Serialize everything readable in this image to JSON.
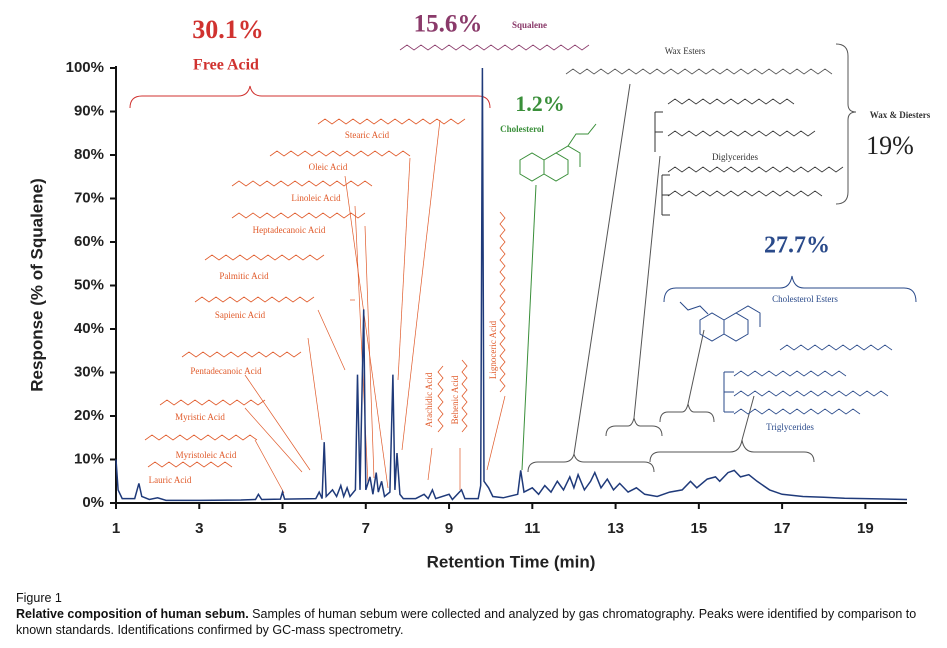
{
  "chart_data": {
    "type": "line",
    "y_label": "Response (% of Squalene)",
    "x_label": "Retention Time (min)",
    "xlim": [
      1,
      20
    ],
    "xticks": [
      1,
      3,
      5,
      7,
      9,
      11,
      13,
      15,
      17,
      19
    ],
    "ylim": [
      0,
      100
    ],
    "yticks": [
      {
        "value": 0,
        "label": "0%"
      },
      {
        "value": 10,
        "label": "10%"
      },
      {
        "value": 20,
        "label": "20%"
      },
      {
        "value": 30,
        "label": "30%"
      },
      {
        "value": 40,
        "label": "40%"
      },
      {
        "value": 50,
        "label": "50%"
      },
      {
        "value": 60,
        "label": "60%"
      },
      {
        "value": 70,
        "label": "70%"
      },
      {
        "value": 80,
        "label": "80%"
      },
      {
        "value": 90,
        "label": "90%"
      },
      {
        "value": 100,
        "label": "100%"
      }
    ],
    "series": [
      {
        "color": "#1f3a7a",
        "x": [
          1.0,
          1.05,
          1.15,
          1.45,
          1.55,
          1.62,
          1.8,
          2.0,
          2.2,
          3.0,
          4.0,
          4.35,
          4.42,
          4.5,
          4.95,
          5.0,
          5.05,
          5.8,
          5.88,
          5.95,
          6.0,
          6.05,
          6.2,
          6.3,
          6.4,
          6.47,
          6.55,
          6.62,
          6.75,
          6.8,
          6.86,
          6.95,
          7.0,
          7.1,
          7.17,
          7.25,
          7.3,
          7.38,
          7.45,
          7.58,
          7.65,
          7.7,
          7.75,
          7.82,
          7.9,
          8.2,
          8.4,
          8.5,
          8.6,
          8.68,
          9.0,
          9.08,
          9.3,
          9.38,
          9.7,
          9.76,
          9.8,
          9.84,
          9.95,
          10.05,
          10.3,
          10.65,
          10.72,
          10.8,
          11.0,
          11.15,
          11.3,
          11.45,
          11.6,
          11.75,
          11.9,
          12.0,
          12.1,
          12.25,
          12.4,
          12.5,
          12.65,
          12.8,
          12.95,
          13.1,
          13.3,
          13.5,
          13.7,
          14.0,
          14.3,
          14.6,
          14.8,
          14.95,
          15.2,
          15.4,
          15.5,
          15.7,
          15.85,
          16.0,
          16.2,
          16.4,
          16.7,
          17.0,
          17.5,
          18.0,
          18.5,
          19.0,
          20.0
        ],
        "values": [
          10,
          3,
          1,
          1,
          4.5,
          1.5,
          0.8,
          1.2,
          0.6,
          0.6,
          0.7,
          0.8,
          2,
          0.8,
          0.9,
          2.5,
          0.9,
          1,
          2.5,
          1,
          14,
          1.5,
          3,
          1.5,
          4,
          1.5,
          3.5,
          1.5,
          3,
          29.5,
          3,
          44.5,
          3,
          6,
          2,
          7,
          2.5,
          5,
          1.5,
          2.5,
          29.5,
          3,
          11.5,
          2,
          1,
          1,
          2,
          1,
          3,
          1,
          2,
          0.8,
          3,
          1,
          1,
          4,
          100,
          5,
          3.5,
          1.5,
          1.2,
          2,
          7.5,
          2.5,
          3.5,
          2,
          4,
          2.5,
          5,
          3,
          6,
          3.5,
          6.5,
          3,
          5,
          7,
          3.5,
          5.5,
          3,
          4.5,
          2.5,
          3.5,
          2,
          1.5,
          2.5,
          3,
          5,
          3.5,
          5.5,
          6,
          5,
          7,
          7.5,
          6,
          6.5,
          5,
          3,
          2,
          1.5,
          1.3,
          1.1,
          1,
          0.8
        ]
      }
    ],
    "annotations": [
      {
        "text": "30.1%",
        "color": "#d0322f"
      },
      {
        "text": "Free  Acid",
        "color": "#d0322f"
      },
      {
        "text": "15.6%",
        "color": "#8a3a6a"
      },
      {
        "text": "Squalene",
        "color": "#8a3a6a"
      },
      {
        "text": "1.2%",
        "color": "#3a8f3a"
      },
      {
        "text": "Cholesterol",
        "color": "#3a8f3a"
      },
      {
        "text": "Wax Esters",
        "color": "#333333"
      },
      {
        "text": "Wax & Diesters",
        "color": "#333333"
      },
      {
        "text": "19%",
        "color": "#222222"
      },
      {
        "text": "Diglycerides",
        "color": "#333333"
      },
      {
        "text": "27.7%",
        "color": "#2a4a8a"
      },
      {
        "text": "Cholesterol Esters",
        "color": "#2a4a8a"
      },
      {
        "text": "Triglycerides",
        "color": "#2a4a8a"
      },
      {
        "text": "Stearic Acid",
        "color": "#e05a2a"
      },
      {
        "text": "Oleic Acid",
        "color": "#e05a2a"
      },
      {
        "text": "Linoleic Acid",
        "color": "#e05a2a"
      },
      {
        "text": "Heptadecanoic Acid",
        "color": "#e05a2a"
      },
      {
        "text": "Palmitic Acid",
        "color": "#e05a2a"
      },
      {
        "text": "Sapienic Acid",
        "color": "#e05a2a"
      },
      {
        "text": "Pentadecanoic Acid",
        "color": "#e05a2a"
      },
      {
        "text": "Myristic Acid",
        "color": "#e05a2a"
      },
      {
        "text": "Myristoleic Acid",
        "color": "#e05a2a"
      },
      {
        "text": "Lauric Acid",
        "color": "#e05a2a"
      },
      {
        "text": "Arachidic Acid",
        "color": "#e05a2a"
      },
      {
        "text": "Behenic Acid",
        "color": "#e05a2a"
      },
      {
        "text": "Lignoceric Acid",
        "color": "#e05a2a"
      }
    ]
  },
  "caption": {
    "label": "Figure 1",
    "title": "Relative composition of human sebum.",
    "text": "Samples of human sebum were collected and analyzed by gas chromatography. Peaks were identified by comparison to known standards. Identifications confirmed by GC-mass spectrometry."
  }
}
